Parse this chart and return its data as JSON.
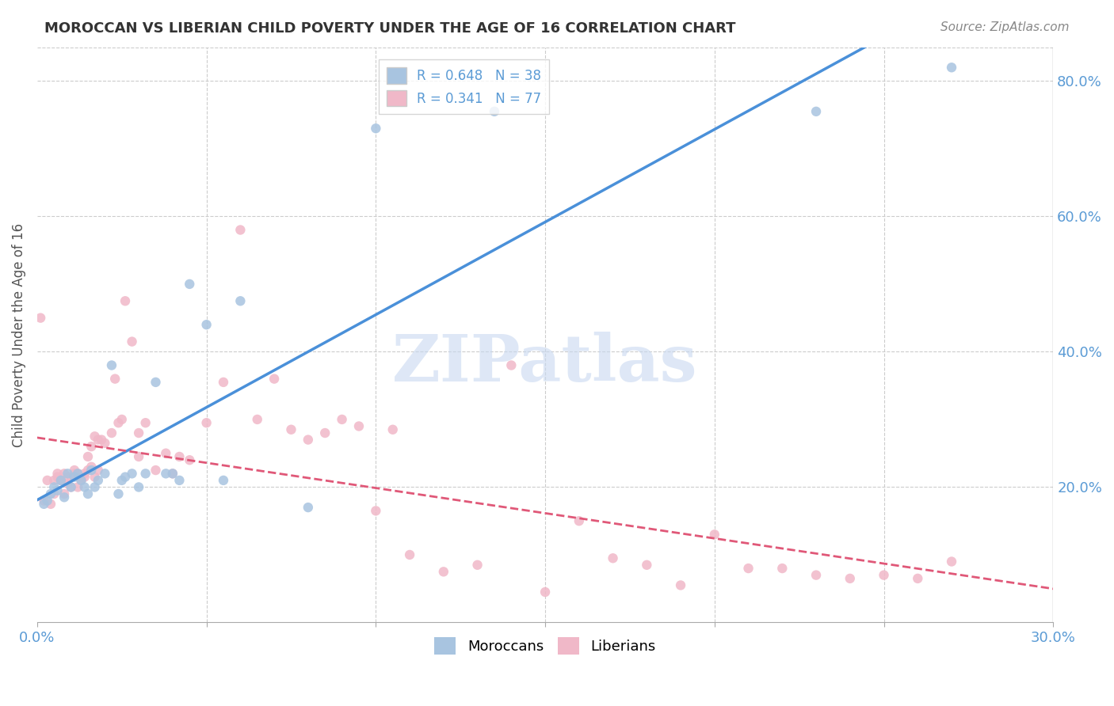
{
  "title": "MOROCCAN VS LIBERIAN CHILD POVERTY UNDER THE AGE OF 16 CORRELATION CHART",
  "source": "Source: ZipAtlas.com",
  "ylabel": "Child Poverty Under the Age of 16",
  "xlim": [
    0.0,
    0.3
  ],
  "ylim": [
    0.0,
    0.85
  ],
  "yticks": [
    0.2,
    0.4,
    0.6,
    0.8
  ],
  "ytick_labels": [
    "20.0%",
    "40.0%",
    "60.0%",
    "80.0%"
  ],
  "xtick_positions": [
    0.0,
    0.05,
    0.1,
    0.15,
    0.2,
    0.25,
    0.3
  ],
  "xtick_labels": [
    "0.0%",
    "",
    "",
    "",
    "",
    "",
    "30.0%"
  ],
  "moroccan_R": 0.648,
  "moroccan_N": 38,
  "liberian_R": 0.341,
  "liberian_N": 77,
  "moroccan_color": "#a8c4e0",
  "moroccan_line_color": "#4a90d9",
  "liberian_color": "#f0b8c8",
  "liberian_line_color": "#e05878",
  "tick_color": "#5b9bd5",
  "grid_color": "#cccccc",
  "background_color": "#ffffff",
  "watermark": "ZIPatlas",
  "watermark_color": "#c8d8f0",
  "moroccan_x": [
    0.002,
    0.003,
    0.004,
    0.005,
    0.006,
    0.007,
    0.008,
    0.009,
    0.01,
    0.011,
    0.012,
    0.013,
    0.014,
    0.015,
    0.016,
    0.017,
    0.018,
    0.02,
    0.022,
    0.024,
    0.025,
    0.026,
    0.028,
    0.03,
    0.032,
    0.035,
    0.038,
    0.04,
    0.042,
    0.045,
    0.05,
    0.055,
    0.06,
    0.08,
    0.1,
    0.135,
    0.23,
    0.27
  ],
  "moroccan_y": [
    0.175,
    0.18,
    0.19,
    0.2,
    0.195,
    0.21,
    0.185,
    0.22,
    0.2,
    0.215,
    0.22,
    0.21,
    0.2,
    0.19,
    0.225,
    0.2,
    0.21,
    0.22,
    0.38,
    0.19,
    0.21,
    0.215,
    0.22,
    0.2,
    0.22,
    0.355,
    0.22,
    0.22,
    0.21,
    0.5,
    0.44,
    0.21,
    0.475,
    0.17,
    0.73,
    0.755,
    0.755,
    0.82
  ],
  "liberian_x": [
    0.001,
    0.002,
    0.003,
    0.004,
    0.005,
    0.005,
    0.006,
    0.006,
    0.007,
    0.007,
    0.008,
    0.008,
    0.009,
    0.009,
    0.01,
    0.01,
    0.011,
    0.011,
    0.012,
    0.012,
    0.013,
    0.013,
    0.014,
    0.014,
    0.015,
    0.015,
    0.016,
    0.016,
    0.017,
    0.017,
    0.018,
    0.018,
    0.019,
    0.02,
    0.022,
    0.023,
    0.024,
    0.025,
    0.026,
    0.028,
    0.03,
    0.03,
    0.032,
    0.035,
    0.038,
    0.04,
    0.042,
    0.045,
    0.05,
    0.055,
    0.06,
    0.065,
    0.07,
    0.075,
    0.08,
    0.085,
    0.09,
    0.095,
    0.1,
    0.105,
    0.11,
    0.12,
    0.13,
    0.14,
    0.15,
    0.16,
    0.17,
    0.18,
    0.19,
    0.2,
    0.21,
    0.22,
    0.23,
    0.24,
    0.25,
    0.26,
    0.27
  ],
  "liberian_y": [
    0.45,
    0.18,
    0.21,
    0.175,
    0.19,
    0.21,
    0.215,
    0.22,
    0.21,
    0.21,
    0.19,
    0.22,
    0.205,
    0.215,
    0.2,
    0.215,
    0.22,
    0.225,
    0.2,
    0.22,
    0.21,
    0.215,
    0.215,
    0.22,
    0.225,
    0.245,
    0.23,
    0.26,
    0.215,
    0.275,
    0.225,
    0.27,
    0.27,
    0.265,
    0.28,
    0.36,
    0.295,
    0.3,
    0.475,
    0.415,
    0.245,
    0.28,
    0.295,
    0.225,
    0.25,
    0.22,
    0.245,
    0.24,
    0.295,
    0.355,
    0.58,
    0.3,
    0.36,
    0.285,
    0.27,
    0.28,
    0.3,
    0.29,
    0.165,
    0.285,
    0.1,
    0.075,
    0.085,
    0.38,
    0.045,
    0.15,
    0.095,
    0.085,
    0.055,
    0.13,
    0.08,
    0.08,
    0.07,
    0.065,
    0.07,
    0.065,
    0.09
  ]
}
